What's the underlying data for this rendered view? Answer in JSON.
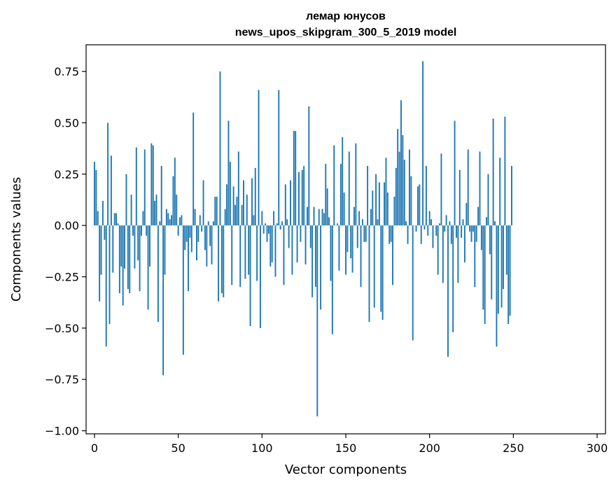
{
  "chart_data": {
    "type": "bar",
    "title": "лемар юнусов",
    "subtitle": "news_upos_skipgram_300_5_2019 model",
    "xlabel": "Vector components",
    "ylabel": "Components values",
    "xlim": [
      -5,
      305
    ],
    "ylim": [
      -1.015,
      0.88
    ],
    "xticks": [
      0,
      50,
      100,
      150,
      200,
      250,
      300
    ],
    "xtick_labels": [
      "0",
      "50",
      "100",
      "150",
      "200",
      "250",
      "300"
    ],
    "yticks": [
      -1.0,
      -0.75,
      -0.5,
      -0.25,
      0.0,
      0.25,
      0.5,
      0.75
    ],
    "ytick_labels": [
      "−1.00",
      "−0.75",
      "−0.50",
      "−0.25",
      "0.00",
      "0.25",
      "0.50",
      "0.75"
    ],
    "grid": false,
    "bar_color": "#1f77b4",
    "values": [
      0.31,
      0.27,
      0.07,
      -0.37,
      -0.24,
      0.12,
      -0.07,
      -0.59,
      0.5,
      -0.48,
      0.34,
      -0.23,
      0.06,
      0.06,
      0.01,
      -0.33,
      -0.2,
      -0.39,
      -0.21,
      0.25,
      -0.31,
      -0.33,
      0.15,
      -0.05,
      -0.21,
      0.38,
      -0.17,
      -0.32,
      -0.05,
      0.07,
      0.37,
      -0.05,
      -0.41,
      -0.2,
      0.4,
      0.39,
      0.12,
      0.15,
      -0.47,
      0.02,
      0.29,
      -0.73,
      -0.24,
      0.08,
      0.06,
      0.03,
      0.05,
      0.24,
      0.33,
      0.15,
      -0.05,
      0.04,
      0.05,
      -0.63,
      -0.12,
      -0.08,
      -0.32,
      -0.06,
      -0.13,
      0.55,
      0.08,
      -0.17,
      -0.08,
      0.05,
      -0.03,
      0.22,
      -0.12,
      -0.2,
      0.02,
      -0.1,
      -0.19,
      0.02,
      0.14,
      0.14,
      -0.37,
      0.75,
      -0.33,
      -0.35,
      0.08,
      0.2,
      0.51,
      0.31,
      -0.29,
      0.19,
      0.1,
      0.14,
      0.36,
      -0.3,
      0.1,
      0.22,
      -0.26,
      0.15,
      -0.24,
      -0.49,
      0.23,
      0.05,
      0.28,
      -0.27,
      0.66,
      -0.5,
      0.07,
      -0.04,
      0.01,
      -0.08,
      -0.04,
      -0.2,
      -0.18,
      0.07,
      -0.25,
      0.01,
      0.66,
      -0.02,
      0.02,
      -0.29,
      0.2,
      0.03,
      -0.11,
      0.22,
      -0.24,
      0.46,
      0.46,
      -0.18,
      0.26,
      -0.08,
      0.27,
      0.29,
      -0.19,
      0.09,
      0.58,
      -0.11,
      -0.35,
      0.09,
      -0.3,
      -0.93,
      0.08,
      -0.41,
      0.08,
      0.06,
      0.3,
      0.18,
      0.04,
      -0.27,
      -0.53,
      0.39,
      0.0,
      0.01,
      -0.22,
      0.3,
      0.43,
      0.16,
      -0.24,
      -0.13,
      0.36,
      -0.16,
      -0.23,
      0.09,
      0.4,
      -0.11,
      0.07,
      -0.3,
      0.03,
      -0.08,
      -0.08,
      0.29,
      -0.47,
      0.08,
      0.17,
      -0.4,
      0.25,
      0.03,
      0.21,
      -0.42,
      -0.46,
      0.21,
      0.33,
      0.16,
      -0.09,
      -0.08,
      -0.29,
      0.14,
      0.28,
      0.47,
      0.36,
      0.61,
      0.44,
      0.32,
      0.02,
      -0.09,
      0.37,
      0.24,
      -0.56,
      0.0,
      -0.03,
      0.19,
      0.2,
      -0.09,
      0.8,
      -0.02,
      0.29,
      -0.05,
      0.07,
      0.03,
      -0.11,
      0.0,
      -0.05,
      -0.24,
      0.01,
      0.35,
      -0.28,
      -0.03,
      0.05,
      -0.64,
      0.02,
      -0.09,
      -0.52,
      0.51,
      -0.06,
      -0.28,
      0.27,
      -0.06,
      0.03,
      -0.18,
      0.11,
      0.37,
      -0.03,
      -0.08,
      -0.03,
      -0.3,
      -0.08,
      0.09,
      0.36,
      -0.12,
      -0.41,
      -0.48,
      0.04,
      0.25,
      -0.14,
      -0.36,
      0.52,
      0.02,
      -0.59,
      -0.43,
      0.33,
      -0.4,
      -0.31,
      0.53,
      -0.24,
      -0.48,
      -0.44,
      0.29
    ]
  }
}
